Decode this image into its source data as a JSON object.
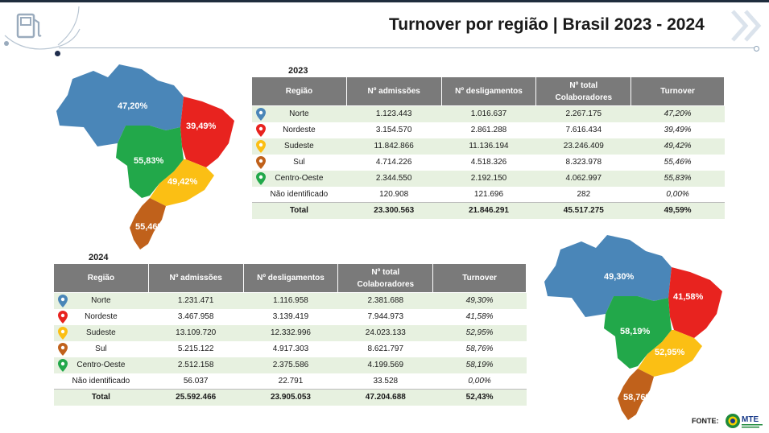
{
  "header": {
    "title": "Turnover por região | Brasil 2023 - 2024"
  },
  "columns": {
    "regiao": "Região",
    "admissoes": "Nº admissões",
    "desligamentos": "Nº desligamentos",
    "total_a": "Nº total",
    "total_b": "Colaboradores",
    "turnover": "Turnover"
  },
  "table2023": {
    "year": "2023",
    "rows": [
      {
        "regiao": "Norte",
        "adm": "1.123.443",
        "desl": "1.016.637",
        "total": "2.267.175",
        "turnover": "47,20%"
      },
      {
        "regiao": "Nordeste",
        "adm": "3.154.570",
        "desl": "2.861.288",
        "total": "7.616.434",
        "turnover": "39,49%"
      },
      {
        "regiao": "Sudeste",
        "adm": "11.842.866",
        "desl": "11.136.194",
        "total": "23.246.409",
        "turnover": "49,42%"
      },
      {
        "regiao": "Sul",
        "adm": "4.714.226",
        "desl": "4.518.326",
        "total": "8.323.978",
        "turnover": "55,46%"
      },
      {
        "regiao": "Centro-Oeste",
        "adm": "2.344.550",
        "desl": "2.192.150",
        "total": "4.062.997",
        "turnover": "55,83%"
      },
      {
        "regiao": "Não identificado",
        "adm": "120.908",
        "desl": "121.696",
        "total": "282",
        "turnover": "0,00%"
      }
    ],
    "total": {
      "regiao": "Total",
      "adm": "23.300.563",
      "desl": "21.846.291",
      "total": "45.517.275",
      "turnover": "49,59%"
    }
  },
  "table2024": {
    "year": "2024",
    "rows": [
      {
        "regiao": "Norte",
        "adm": "1.231.471",
        "desl": "1.116.958",
        "total": "2.381.688",
        "turnover": "49,30%"
      },
      {
        "regiao": "Nordeste",
        "adm": "3.467.958",
        "desl": "3.139.419",
        "total": "7.944.973",
        "turnover": "41,58%"
      },
      {
        "regiao": "Sudeste",
        "adm": "13.109.720",
        "desl": "12.332.996",
        "total": "24.023.133",
        "turnover": "52,95%"
      },
      {
        "regiao": "Sul",
        "adm": "5.215.122",
        "desl": "4.917.303",
        "total": "8.621.797",
        "turnover": "58,76%"
      },
      {
        "regiao": "Centro-Oeste",
        "adm": "2.512.158",
        "desl": "2.375.586",
        "total": "4.199.569",
        "turnover": "58,19%"
      },
      {
        "regiao": "Não identificado",
        "adm": "56.037",
        "desl": "22.791",
        "total": "33.528",
        "turnover": "0,00%"
      }
    ],
    "total": {
      "regiao": "Total",
      "adm": "25.592.466",
      "desl": "23.905.053",
      "total": "47.204.688",
      "turnover": "52,43%"
    }
  },
  "map2023": {
    "norte": "47,20%",
    "nordeste": "39,49%",
    "centro_oeste": "55,83%",
    "sudeste": "49,42%",
    "sul": "55,46%"
  },
  "map2024": {
    "norte": "49,30%",
    "nordeste": "41,58%",
    "centro_oeste": "58,19%",
    "sudeste": "52,95%",
    "sul": "58,76%"
  },
  "colors": {
    "norte": "#4a86b8",
    "nordeste": "#e8231f",
    "sudeste": "#fbbf14",
    "sul": "#c0611b",
    "centro_oeste": "#22a84a",
    "header_gray": "#7a7a7a",
    "row_green": "#e7f1e0"
  },
  "footer": {
    "fonte": "FONTE:",
    "logo_text": "MTE"
  }
}
